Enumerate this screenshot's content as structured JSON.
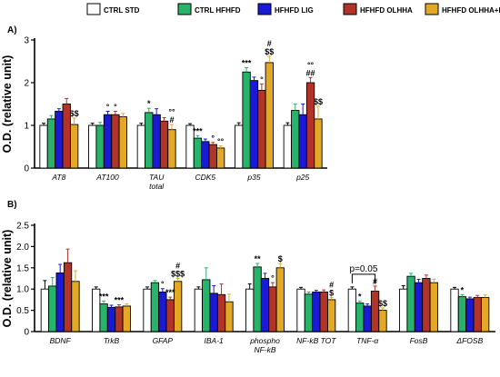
{
  "chart_data": [
    {
      "type": "bar",
      "panel": "A)",
      "ylabel": "O.D. (relative unit)",
      "ylim": [
        0,
        3
      ],
      "yticks": [
        "0",
        "1",
        "2",
        "3"
      ],
      "legend_position": "top",
      "categories": [
        [
          "AT8"
        ],
        [
          "AT100"
        ],
        [
          "TAU",
          "total"
        ],
        [
          "CDK5"
        ],
        [
          "p35"
        ],
        [
          "p25"
        ]
      ],
      "series": [
        {
          "name": "CTRL STD",
          "color": "#ffffff",
          "values": [
            1.0,
            1.0,
            1.0,
            1.0,
            1.0,
            1.0
          ],
          "errors": [
            0.05,
            0.05,
            0.05,
            0.04,
            0.06,
            0.06
          ]
        },
        {
          "name": "CTRL HFHFD",
          "color": "#27b36a",
          "values": [
            1.15,
            1.0,
            1.3,
            0.7,
            2.25,
            1.35
          ],
          "errors": [
            0.08,
            0.07,
            0.1,
            0.06,
            0.1,
            0.15
          ]
        },
        {
          "name": "HFHFD LIG",
          "color": "#1a1ad6",
          "values": [
            1.33,
            1.25,
            1.25,
            0.62,
            2.05,
            1.25
          ],
          "errors": [
            0.06,
            0.08,
            0.14,
            0.06,
            0.08,
            0.25
          ]
        },
        {
          "name": "HFHFD OLHHA",
          "color": "#b23327",
          "values": [
            1.5,
            1.25,
            1.1,
            0.55,
            1.82,
            2.0
          ],
          "errors": [
            0.13,
            0.08,
            0.08,
            0.05,
            0.15,
            0.12
          ]
        },
        {
          "name": "HFHFD OLHHA+LIG",
          "color": "#e3a926",
          "values": [
            1.02,
            1.2,
            0.9,
            0.47,
            2.47,
            1.15
          ],
          "errors": [
            0.15,
            0.08,
            0.12,
            0.05,
            0.15,
            0.3
          ]
        }
      ],
      "annotations": [
        {
          "category": 0,
          "series": 4,
          "lines": [
            "$$"
          ]
        },
        {
          "category": 1,
          "series": 2,
          "lines": [
            "°"
          ]
        },
        {
          "category": 1,
          "series": 3,
          "lines": [
            "°"
          ]
        },
        {
          "category": 2,
          "series": 1,
          "lines": [
            "*"
          ]
        },
        {
          "category": 2,
          "series": 4,
          "lines": [
            "°°",
            "#"
          ]
        },
        {
          "category": 3,
          "series": 1,
          "lines": [
            "***"
          ]
        },
        {
          "category": 3,
          "series": 3,
          "lines": [
            "°"
          ]
        },
        {
          "category": 3,
          "series": 4,
          "lines": [
            "°°"
          ]
        },
        {
          "category": 4,
          "series": 1,
          "lines": [
            "***"
          ]
        },
        {
          "category": 4,
          "series": 3,
          "lines": [
            "°"
          ]
        },
        {
          "category": 4,
          "series": 4,
          "lines": [
            "#",
            "$$"
          ]
        },
        {
          "category": 5,
          "series": 3,
          "lines": [
            "°°",
            "##"
          ]
        },
        {
          "category": 5,
          "series": 4,
          "lines": [
            "$$"
          ]
        }
      ]
    },
    {
      "type": "bar",
      "panel": "B)",
      "ylabel": "O.D. (relative unit)",
      "ylim": [
        0,
        2.5
      ],
      "yticks": [
        "0",
        "0.5",
        "1.0",
        "1.5",
        "2.0",
        "2.5"
      ],
      "categories": [
        [
          "BDNF"
        ],
        [
          "TrkB"
        ],
        [
          "GFAP"
        ],
        [
          "IBA-1"
        ],
        [
          "phospho",
          "NF-kB"
        ],
        [
          "NF-kB TOT"
        ],
        [
          "TNF-α"
        ],
        [
          "FosB"
        ],
        [
          "ΔFOSB"
        ]
      ],
      "series": [
        {
          "name": "CTRL STD",
          "color": "#ffffff",
          "values": [
            1.0,
            1.0,
            1.0,
            1.0,
            1.0,
            1.0,
            1.0,
            1.0,
            1.0
          ],
          "errors": [
            0.2,
            0.05,
            0.05,
            0.05,
            0.12,
            0.04,
            0.05,
            0.08,
            0.04
          ]
        },
        {
          "name": "CTRL HFHFD",
          "color": "#27b36a",
          "values": [
            1.07,
            0.65,
            1.15,
            1.22,
            1.52,
            0.88,
            0.67,
            1.3,
            0.82
          ]
        },
        {
          "name": "HFHFD LIG",
          "color": "#1a1ad6",
          "values": [
            1.38,
            0.57,
            0.93,
            0.9,
            1.25,
            0.93,
            0.6,
            1.15,
            0.77
          ]
        },
        {
          "name": "HFHFD OLHHA",
          "color": "#b23327",
          "values": [
            1.62,
            0.58,
            0.75,
            0.87,
            1.05,
            0.93,
            0.95,
            1.25,
            0.8
          ]
        },
        {
          "name": "HFHFD OLHHA+LIG",
          "color": "#e3a926",
          "values": [
            1.18,
            0.6,
            1.18,
            0.7,
            1.5,
            0.75,
            0.5,
            1.15,
            0.8
          ]
        }
      ],
      "errors_by_series": [
        [
          0.2,
          0.05,
          0.05,
          0.05,
          0.12,
          0.04,
          0.05,
          0.08,
          0.04
        ],
        [
          0.2,
          0.07,
          0.05,
          0.28,
          0.08,
          0.05,
          0.05,
          0.07,
          0.05
        ],
        [
          0.2,
          0.05,
          0.08,
          0.18,
          0.12,
          0.04,
          0.05,
          0.08,
          0.04
        ],
        [
          0.32,
          0.05,
          0.06,
          0.25,
          0.1,
          0.05,
          0.12,
          0.08,
          0.05
        ],
        [
          0.25,
          0.05,
          0.07,
          0.18,
          0.1,
          0.05,
          0.06,
          0.08,
          0.06
        ]
      ],
      "annotations": [
        {
          "category": 1,
          "series": 1,
          "lines": [
            "***"
          ]
        },
        {
          "category": 1,
          "series": 3,
          "lines": [
            "***"
          ]
        },
        {
          "category": 2,
          "series": 2,
          "lines": [
            "°"
          ]
        },
        {
          "category": 2,
          "series": 3,
          "lines": [
            "***"
          ]
        },
        {
          "category": 2,
          "series": 4,
          "lines": [
            "#",
            "$$$"
          ]
        },
        {
          "category": 4,
          "series": 1,
          "lines": [
            "**"
          ]
        },
        {
          "category": 4,
          "series": 3,
          "lines": [
            "°"
          ]
        },
        {
          "category": 4,
          "series": 4,
          "lines": [
            "$"
          ]
        },
        {
          "category": 5,
          "series": 4,
          "lines": [
            "#",
            "$"
          ]
        },
        {
          "category": 6,
          "series": 1,
          "lines": [
            "*"
          ]
        },
        {
          "category": 6,
          "series": 3,
          "lines": [
            "#"
          ]
        },
        {
          "category": 6,
          "series": 4,
          "lines": [
            "$$"
          ]
        },
        {
          "category": 8,
          "series": 1,
          "lines": [
            "*"
          ]
        }
      ],
      "bracket": {
        "from_category": 6,
        "from_series": 0,
        "to_series": 3,
        "label": "p=0.05"
      }
    }
  ]
}
